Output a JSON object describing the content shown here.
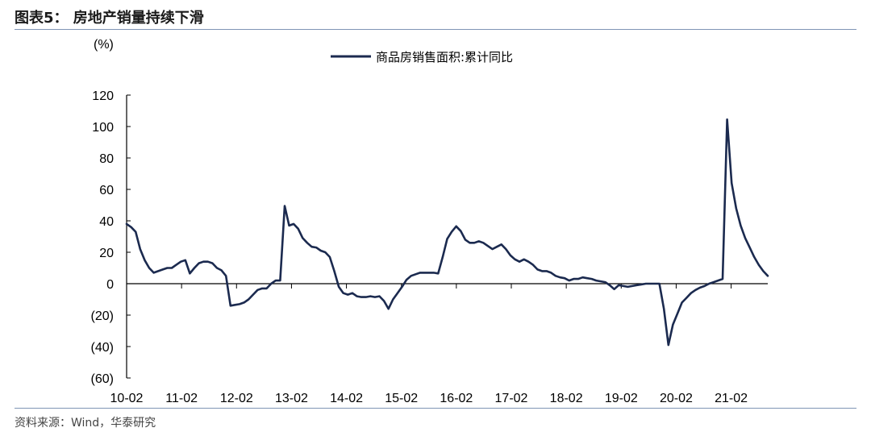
{
  "figure": {
    "title": "图表5：  房地产销量持续下滑",
    "source": "资料来源：Wind，华泰研究"
  },
  "chart_data": {
    "type": "line",
    "unit_label": "(%)",
    "ylim": [
      -60,
      120
    ],
    "y_ticks": [
      120,
      100,
      80,
      60,
      40,
      20,
      0,
      -20,
      -40,
      -60
    ],
    "y_tick_labels": [
      "120",
      "100",
      "80",
      "60",
      "40",
      "20",
      "0",
      "(20)",
      "(40)",
      "(60)"
    ],
    "x_ticks": [
      "10-02",
      "11-02",
      "12-02",
      "13-02",
      "14-02",
      "15-02",
      "16-02",
      "17-02",
      "18-02",
      "19-02",
      "20-02",
      "21-02"
    ],
    "x_start": "2010-02",
    "x_end": "2021-10",
    "legend": {
      "placement": "top-center"
    },
    "grid": false,
    "series": [
      {
        "name": "商品房销售面积:累计同比",
        "color": "#1b2a4f",
        "values": [
          38,
          36,
          33,
          22,
          15,
          10,
          7,
          8,
          9,
          10,
          10,
          12,
          14,
          15,
          6.5,
          10,
          13,
          14,
          14,
          13,
          10,
          8.5,
          5,
          -14,
          -13.5,
          -13,
          -12,
          -10,
          -7,
          -4,
          -3,
          -3,
          0,
          2,
          2,
          49.5,
          37,
          38,
          35,
          29,
          26,
          23.5,
          23,
          21,
          20,
          17,
          8,
          -2,
          -6,
          -7,
          -6,
          -8,
          -8.5,
          -8.5,
          -8,
          -8.5,
          -8,
          -11,
          -16,
          -10,
          -6,
          -2,
          2.5,
          5,
          6,
          7,
          7,
          7,
          7,
          6.5,
          17,
          28.5,
          33,
          36.5,
          33.5,
          28,
          26,
          26,
          27,
          26,
          24,
          22,
          23.5,
          25,
          22,
          18,
          15.5,
          14,
          15.5,
          14,
          12,
          9,
          8,
          8,
          7,
          5,
          4,
          3.5,
          2,
          3,
          3,
          4,
          3.5,
          3,
          2,
          1.5,
          1,
          -1,
          -3.5,
          -1,
          -1.5,
          -2,
          -1.5,
          -1,
          -0.5,
          0,
          0,
          0,
          0,
          -16,
          -39,
          -26,
          -19,
          -12,
          -9,
          -6,
          -4,
          -2.5,
          -1.5,
          0,
          1,
          2,
          3,
          104.5,
          64,
          48,
          37,
          29,
          23,
          17,
          12,
          8,
          5
        ]
      }
    ]
  }
}
